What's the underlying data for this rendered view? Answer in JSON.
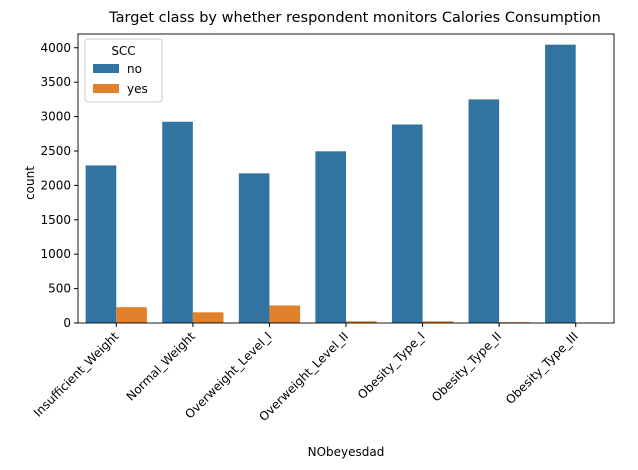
{
  "chart_data": {
    "type": "bar",
    "title": "Target class by whether respondent monitors Calories Consumption",
    "xlabel": "NObeyesdad",
    "ylabel": "count",
    "categories": [
      "Insufficient_Weight",
      "Normal_Weight",
      "Overweight_Level_I",
      "Overweight_Level_II",
      "Obesity_Type_I",
      "Obesity_Type_II",
      "Obesity_Type_III"
    ],
    "series": [
      {
        "name": "no",
        "color": "#3274a1",
        "values": [
          2290,
          2925,
          2175,
          2495,
          2885,
          3250,
          4045
        ]
      },
      {
        "name": "yes",
        "color": "#e1812c",
        "values": [
          230,
          155,
          255,
          25,
          25,
          12,
          2
        ]
      }
    ],
    "ylim": [
      0,
      4200
    ],
    "yticks": [
      "0",
      "500",
      "1000",
      "1500",
      "2000",
      "2500",
      "3000",
      "3500",
      "4000"
    ],
    "grid": false,
    "legend": {
      "title": "SCC",
      "position": "top-left"
    }
  }
}
